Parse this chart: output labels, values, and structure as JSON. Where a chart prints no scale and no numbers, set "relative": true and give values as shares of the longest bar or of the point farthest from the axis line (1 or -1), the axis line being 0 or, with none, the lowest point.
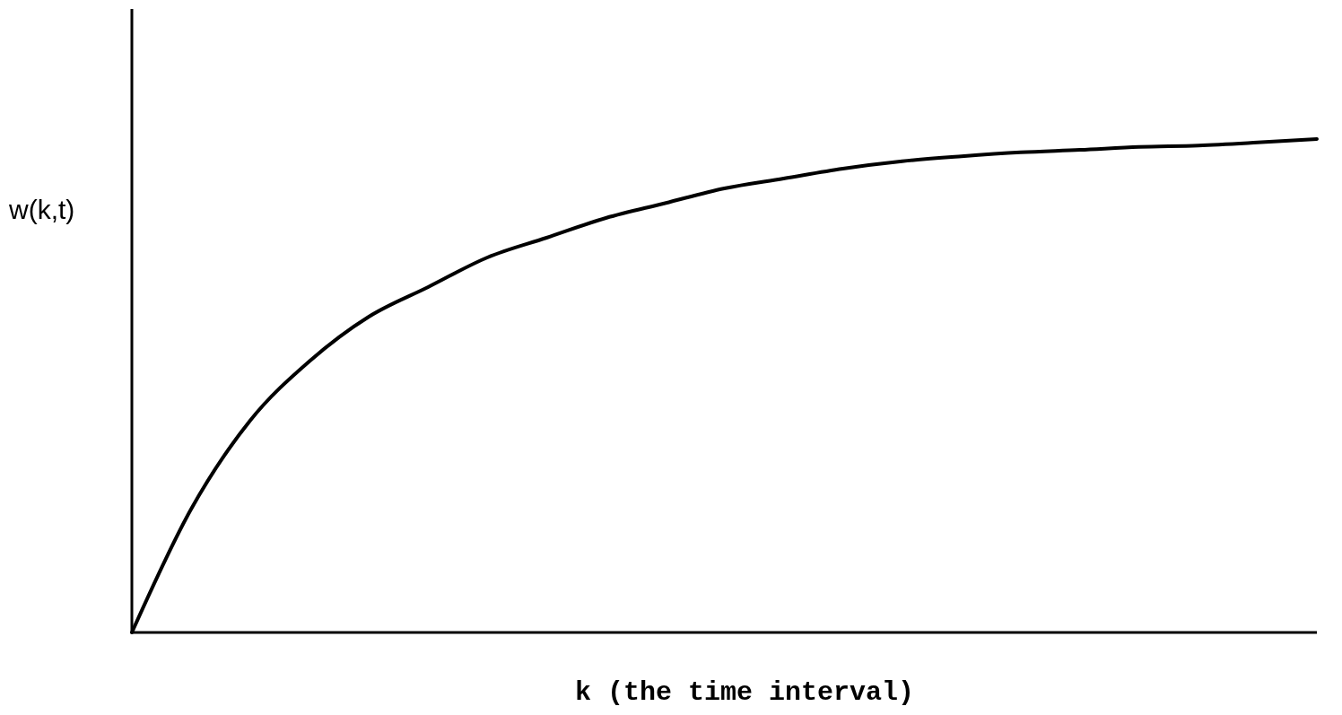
{
  "chart_data": {
    "type": "line",
    "relative": true,
    "xlabel": "k (the time interval)",
    "ylabel": "w(k,t)",
    "categories": [
      null,
      null,
      null,
      null,
      null,
      null,
      null,
      null,
      null,
      null,
      null,
      null,
      null,
      null,
      null,
      null,
      null,
      null,
      null,
      null,
      null
    ],
    "series": [
      {
        "color": "#000000",
        "values": [
          0,
          0.25,
          0.43,
          0.55,
          0.64,
          0.7,
          0.76,
          0.8,
          0.84,
          0.87,
          0.9,
          0.92,
          0.94,
          0.955,
          0.965,
          0.973,
          0.978,
          0.984,
          0.987,
          0.993,
          1
        ]
      }
    ]
  }
}
